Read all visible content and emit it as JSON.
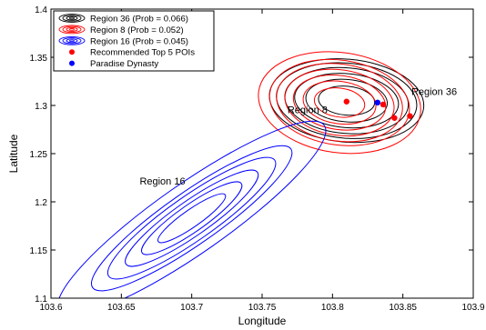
{
  "chart_data": {
    "type": "scatter",
    "title": "",
    "xlabel": "Longitude",
    "ylabel": "Latitude",
    "xlim": [
      103.6,
      103.9
    ],
    "ylim": [
      1.1,
      1.4
    ],
    "xticks": [
      "103.6",
      "103.65",
      "103.7",
      "103.75",
      "103.8",
      "103.85",
      "103.9"
    ],
    "yticks": [
      "1.1",
      "1.15",
      "1.2",
      "1.25",
      "1.3",
      "1.35",
      "1.4"
    ],
    "grid": false,
    "legend_position": "top-left",
    "legend": [
      {
        "label": "Region 36 (Prob = 0.066)",
        "kind": "ellipse",
        "color": "#000000"
      },
      {
        "label": "Region 8 (Prob = 0.052)",
        "kind": "ellipse",
        "color": "#ff0000"
      },
      {
        "label": "Region 16 (Prob = 0.045)",
        "kind": "ellipse",
        "color": "#0000ff"
      },
      {
        "label": "Recommended Top 5 POIs",
        "kind": "dot",
        "color": "#ff0000"
      },
      {
        "label": "Paradise Dynasty",
        "kind": "dot",
        "color": "#0000ff"
      }
    ],
    "contour_series": [
      {
        "name": "Region 36",
        "color": "#000000",
        "center": [
          103.81,
          1.305
        ],
        "angle_deg": -5,
        "semi_axes": [
          [
            0.02,
            0.015
          ],
          [
            0.029,
            0.022
          ],
          [
            0.037,
            0.028
          ],
          [
            0.044,
            0.034
          ],
          [
            0.05,
            0.039
          ],
          [
            0.055,
            0.043
          ]
        ]
      },
      {
        "name": "Region 8",
        "color": "#ff0000",
        "center": [
          103.805,
          1.303
        ],
        "angle_deg": -8,
        "semi_axes": [
          [
            0.018,
            0.015
          ],
          [
            0.026,
            0.022
          ],
          [
            0.033,
            0.028
          ],
          [
            0.039,
            0.034
          ],
          [
            0.045,
            0.04
          ],
          [
            0.05,
            0.044
          ],
          [
            0.058,
            0.052
          ]
        ]
      },
      {
        "name": "Region 16",
        "color": "#0000ff",
        "center": [
          103.7,
          1.183
        ],
        "angle_deg": 35,
        "semi_axes": [
          [
            0.029,
            0.009
          ],
          [
            0.043,
            0.014
          ],
          [
            0.057,
            0.018
          ],
          [
            0.072,
            0.023
          ],
          [
            0.086,
            0.027
          ],
          [
            0.115,
            0.036
          ]
        ]
      }
    ],
    "points": [
      {
        "series": "Recommended Top 5 POIs",
        "x": 103.81,
        "y": 1.304,
        "color": "#ff0000"
      },
      {
        "series": "Recommended Top 5 POIs",
        "x": 103.836,
        "y": 1.301,
        "color": "#ff0000"
      },
      {
        "series": "Recommended Top 5 POIs",
        "x": 103.844,
        "y": 1.287,
        "color": "#ff0000"
      },
      {
        "series": "Recommended Top 5 POIs",
        "x": 103.855,
        "y": 1.289,
        "color": "#ff0000"
      },
      {
        "series": "Paradise Dynasty",
        "x": 103.832,
        "y": 1.303,
        "color": "#0000ff"
      }
    ],
    "annotations": [
      {
        "text": "Region 36",
        "x": 103.856,
        "y": 1.311
      },
      {
        "text": "Region 8",
        "x": 103.768,
        "y": 1.292
      },
      {
        "text": "Region 16",
        "x": 103.663,
        "y": 1.218
      }
    ]
  }
}
